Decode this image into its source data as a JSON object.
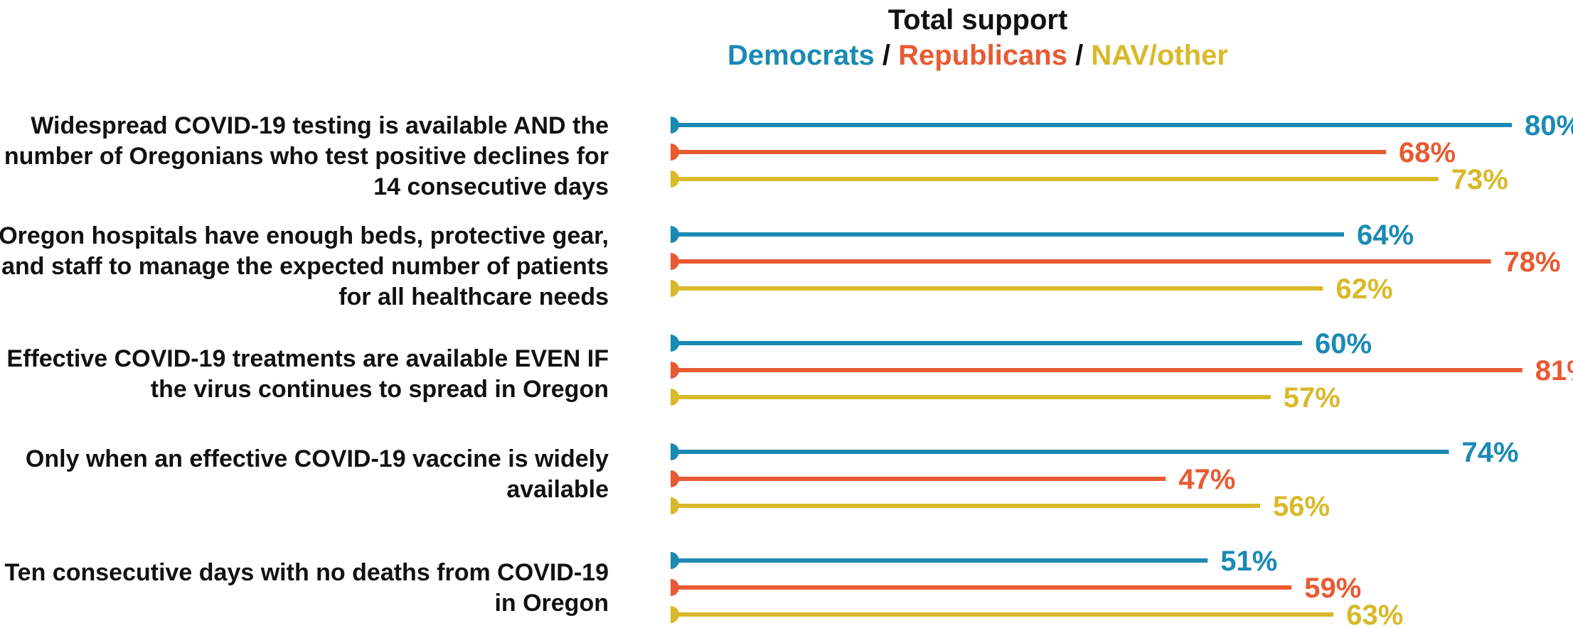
{
  "chart_data": {
    "type": "bar",
    "orientation": "horizontal",
    "title": "Total support",
    "legend": [
      {
        "name": "Democrats",
        "color": "#1a8ab4"
      },
      {
        "name": "Republicans",
        "color": "#e85a32"
      },
      {
        "name": "NAV/other",
        "color": "#d9b929"
      }
    ],
    "legend_separator": "/",
    "legend_placement": "top-center",
    "value_suffix": "%",
    "categories": [
      "Widespread COVID-19 testing is available AND the number of Oregonians who test positive declines for 14 consecutive days",
      "Oregon hospitals have enough beds, protective gear, and staff to manage the expected number of patients for all healthcare needs",
      "Effective COVID-19 treatments are available EVEN IF the virus continues to spread in Oregon",
      "Only when an effective COVID-19 vaccine is widely available",
      "Ten consecutive days with no deaths from COVID-19 in Oregon"
    ],
    "series": [
      {
        "name": "Democrats",
        "color": "#1a8ab4",
        "values": [
          80,
          64,
          60,
          74,
          51
        ]
      },
      {
        "name": "Republicans",
        "color": "#e85a32",
        "values": [
          68,
          78,
          81,
          47,
          59
        ]
      },
      {
        "name": "NAV/other",
        "color": "#d9b929",
        "values": [
          73,
          62,
          57,
          56,
          63
        ]
      }
    ],
    "xlim": [
      0,
      100
    ],
    "grid": false
  }
}
